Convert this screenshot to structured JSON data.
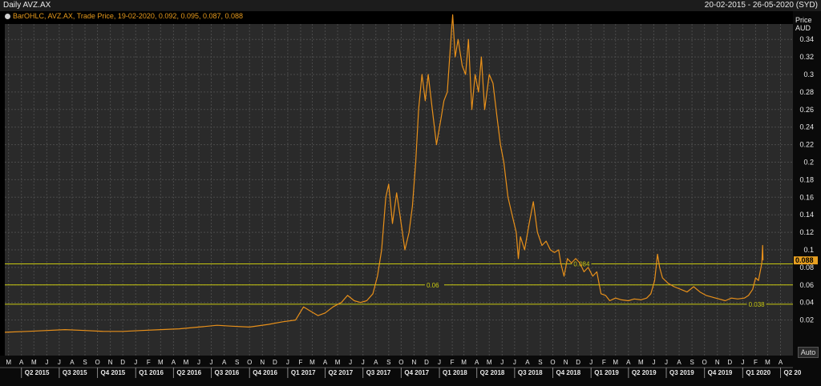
{
  "header": {
    "title": "Daily AVZ.AX",
    "date_range": "20-02-2015 - 26-05-2020 (SYD)"
  },
  "legend": {
    "text": "BarOHLC, AVZ.AX, Trade Price, 19-02-2020, 0.092, 0.095, 0.087, 0.088"
  },
  "price_axis": {
    "title_line1": "Price",
    "title_line2": "AUD",
    "auto_label": "Auto"
  },
  "colors": {
    "background": "#000000",
    "panel": "#1c1c1c",
    "price_line": "#e8901a",
    "support_line": "#c8c810",
    "current_price_badge": "#e8a020",
    "axis_text": "#e8e8e8"
  },
  "chart_data": {
    "type": "line",
    "title": "Daily AVZ.AX",
    "ylabel": "Price AUD",
    "ylim": [
      0,
      0.37
    ],
    "y_ticks": [
      "0.02",
      "0.04",
      "0.06",
      "0.08",
      "0.1",
      "0.12",
      "0.14",
      "0.16",
      "0.18",
      "0.2",
      "0.22",
      "0.24",
      "0.26",
      "0.28",
      "0.3",
      "0.32",
      "0.34"
    ],
    "current_price": "0.088",
    "horizontal_lines": [
      {
        "value": 0.084,
        "label": "0.084",
        "label_at": "2018-11-20"
      },
      {
        "value": 0.06,
        "label": "0.06",
        "label_at": "2017-12-01"
      },
      {
        "value": 0.038,
        "label": "0.038",
        "label_at": "2020-01-15"
      }
    ],
    "month_labels": [
      {
        "label": "M",
        "date": "2015-03-01"
      },
      {
        "label": "A",
        "date": "2015-04-01"
      },
      {
        "label": "M",
        "date": "2015-05-01"
      },
      {
        "label": "J",
        "date": "2015-06-01"
      },
      {
        "label": "J",
        "date": "2015-07-01"
      },
      {
        "label": "A",
        "date": "2015-08-01"
      },
      {
        "label": "S",
        "date": "2015-09-01"
      },
      {
        "label": "O",
        "date": "2015-10-01"
      },
      {
        "label": "N",
        "date": "2015-11-01"
      },
      {
        "label": "D",
        "date": "2015-12-01"
      },
      {
        "label": "J",
        "date": "2016-01-01"
      },
      {
        "label": "F",
        "date": "2016-02-01"
      },
      {
        "label": "M",
        "date": "2016-03-01"
      },
      {
        "label": "A",
        "date": "2016-04-01"
      },
      {
        "label": "M",
        "date": "2016-05-01"
      },
      {
        "label": "J",
        "date": "2016-06-01"
      },
      {
        "label": "J",
        "date": "2016-07-01"
      },
      {
        "label": "A",
        "date": "2016-08-01"
      },
      {
        "label": "S",
        "date": "2016-09-01"
      },
      {
        "label": "O",
        "date": "2016-10-01"
      },
      {
        "label": "N",
        "date": "2016-11-01"
      },
      {
        "label": "D",
        "date": "2016-12-01"
      },
      {
        "label": "J",
        "date": "2017-01-01"
      },
      {
        "label": "F",
        "date": "2017-02-01"
      },
      {
        "label": "M",
        "date": "2017-03-01"
      },
      {
        "label": "A",
        "date": "2017-04-01"
      },
      {
        "label": "M",
        "date": "2017-05-01"
      },
      {
        "label": "J",
        "date": "2017-06-01"
      },
      {
        "label": "J",
        "date": "2017-07-01"
      },
      {
        "label": "A",
        "date": "2017-08-01"
      },
      {
        "label": "S",
        "date": "2017-09-01"
      },
      {
        "label": "O",
        "date": "2017-10-01"
      },
      {
        "label": "N",
        "date": "2017-11-01"
      },
      {
        "label": "D",
        "date": "2017-12-01"
      },
      {
        "label": "J",
        "date": "2018-01-01"
      },
      {
        "label": "F",
        "date": "2018-02-01"
      },
      {
        "label": "M",
        "date": "2018-03-01"
      },
      {
        "label": "A",
        "date": "2018-04-01"
      },
      {
        "label": "M",
        "date": "2018-05-01"
      },
      {
        "label": "J",
        "date": "2018-06-01"
      },
      {
        "label": "J",
        "date": "2018-07-01"
      },
      {
        "label": "A",
        "date": "2018-08-01"
      },
      {
        "label": "S",
        "date": "2018-09-01"
      },
      {
        "label": "O",
        "date": "2018-10-01"
      },
      {
        "label": "N",
        "date": "2018-11-01"
      },
      {
        "label": "D",
        "date": "2018-12-01"
      },
      {
        "label": "J",
        "date": "2019-01-01"
      },
      {
        "label": "F",
        "date": "2019-02-01"
      },
      {
        "label": "M",
        "date": "2019-03-01"
      },
      {
        "label": "A",
        "date": "2019-04-01"
      },
      {
        "label": "M",
        "date": "2019-05-01"
      },
      {
        "label": "J",
        "date": "2019-06-01"
      },
      {
        "label": "J",
        "date": "2019-07-01"
      },
      {
        "label": "A",
        "date": "2019-08-01"
      },
      {
        "label": "S",
        "date": "2019-09-01"
      },
      {
        "label": "O",
        "date": "2019-10-01"
      },
      {
        "label": "N",
        "date": "2019-11-01"
      },
      {
        "label": "D",
        "date": "2019-12-01"
      },
      {
        "label": "J",
        "date": "2020-01-01"
      },
      {
        "label": "F",
        "date": "2020-02-01"
      },
      {
        "label": "M",
        "date": "2020-03-01"
      },
      {
        "label": "A",
        "date": "2020-04-01"
      },
      {
        "label": "M",
        "date": "2020-05-01"
      }
    ],
    "quarter_labels": [
      {
        "label": "Q2 2015",
        "date": "2015-04-01"
      },
      {
        "label": "Q3 2015",
        "date": "2015-07-01"
      },
      {
        "label": "Q4 2015",
        "date": "2015-10-01"
      },
      {
        "label": "Q1 2016",
        "date": "2016-01-01"
      },
      {
        "label": "Q2 2016",
        "date": "2016-04-01"
      },
      {
        "label": "Q3 2016",
        "date": "2016-07-01"
      },
      {
        "label": "Q4 2016",
        "date": "2016-10-01"
      },
      {
        "label": "Q1 2017",
        "date": "2017-01-01"
      },
      {
        "label": "Q2 2017",
        "date": "2017-04-01"
      },
      {
        "label": "Q3 2017",
        "date": "2017-07-01"
      },
      {
        "label": "Q4 2017",
        "date": "2017-10-01"
      },
      {
        "label": "Q1 2018",
        "date": "2018-01-01"
      },
      {
        "label": "Q2 2018",
        "date": "2018-04-01"
      },
      {
        "label": "Q3 2018",
        "date": "2018-07-01"
      },
      {
        "label": "Q4 2018",
        "date": "2018-10-01"
      },
      {
        "label": "Q1 2019",
        "date": "2019-01-01"
      },
      {
        "label": "Q2 2019",
        "date": "2019-04-01"
      },
      {
        "label": "Q3 2019",
        "date": "2019-07-01"
      },
      {
        "label": "Q4 2019",
        "date": "2019-10-01"
      },
      {
        "label": "Q1 2020",
        "date": "2020-01-01"
      },
      {
        "label": "Q2 20",
        "date": "2020-04-01"
      }
    ],
    "x_range": [
      "2015-02-20",
      "2020-05-26"
    ],
    "series": [
      {
        "points": [
          [
            "2015-02-20",
            0.006
          ],
          [
            "2015-04-15",
            0.007
          ],
          [
            "2015-06-01",
            0.008
          ],
          [
            "2015-07-15",
            0.009
          ],
          [
            "2015-09-01",
            0.008
          ],
          [
            "2015-10-15",
            0.007
          ],
          [
            "2015-12-01",
            0.007
          ],
          [
            "2016-01-15",
            0.008
          ],
          [
            "2016-03-01",
            0.009
          ],
          [
            "2016-04-15",
            0.01
          ],
          [
            "2016-06-01",
            0.012
          ],
          [
            "2016-07-15",
            0.014
          ],
          [
            "2016-08-20",
            0.013
          ],
          [
            "2016-10-01",
            0.012
          ],
          [
            "2016-11-15",
            0.015
          ],
          [
            "2016-12-20",
            0.018
          ],
          [
            "2017-01-20",
            0.02
          ],
          [
            "2017-02-08",
            0.035
          ],
          [
            "2017-02-25",
            0.03
          ],
          [
            "2017-03-15",
            0.025
          ],
          [
            "2017-04-01",
            0.028
          ],
          [
            "2017-04-20",
            0.035
          ],
          [
            "2017-05-10",
            0.04
          ],
          [
            "2017-05-25",
            0.048
          ],
          [
            "2017-06-10",
            0.042
          ],
          [
            "2017-06-25",
            0.04
          ],
          [
            "2017-07-10",
            0.042
          ],
          [
            "2017-07-25",
            0.05
          ],
          [
            "2017-08-05",
            0.07
          ],
          [
            "2017-08-15",
            0.1
          ],
          [
            "2017-08-25",
            0.16
          ],
          [
            "2017-09-01",
            0.175
          ],
          [
            "2017-09-10",
            0.13
          ],
          [
            "2017-09-20",
            0.165
          ],
          [
            "2017-09-28",
            0.14
          ],
          [
            "2017-10-10",
            0.1
          ],
          [
            "2017-10-20",
            0.12
          ],
          [
            "2017-10-28",
            0.15
          ],
          [
            "2017-11-05",
            0.2
          ],
          [
            "2017-11-12",
            0.26
          ],
          [
            "2017-11-20",
            0.3
          ],
          [
            "2017-11-28",
            0.27
          ],
          [
            "2017-12-05",
            0.3
          ],
          [
            "2017-12-15",
            0.26
          ],
          [
            "2017-12-25",
            0.22
          ],
          [
            "2018-01-05",
            0.25
          ],
          [
            "2018-01-12",
            0.27
          ],
          [
            "2018-01-20",
            0.28
          ],
          [
            "2018-01-28",
            0.335
          ],
          [
            "2018-02-02",
            0.368
          ],
          [
            "2018-02-08",
            0.32
          ],
          [
            "2018-02-15",
            0.34
          ],
          [
            "2018-02-25",
            0.31
          ],
          [
            "2018-03-05",
            0.3
          ],
          [
            "2018-03-12",
            0.34
          ],
          [
            "2018-03-20",
            0.26
          ],
          [
            "2018-03-28",
            0.3
          ],
          [
            "2018-04-05",
            0.28
          ],
          [
            "2018-04-12",
            0.32
          ],
          [
            "2018-04-20",
            0.26
          ],
          [
            "2018-05-01",
            0.3
          ],
          [
            "2018-05-10",
            0.29
          ],
          [
            "2018-05-20",
            0.25
          ],
          [
            "2018-05-28",
            0.22
          ],
          [
            "2018-06-05",
            0.2
          ],
          [
            "2018-06-15",
            0.16
          ],
          [
            "2018-06-25",
            0.14
          ],
          [
            "2018-07-05",
            0.12
          ],
          [
            "2018-07-10",
            0.09
          ],
          [
            "2018-07-15",
            0.115
          ],
          [
            "2018-07-25",
            0.1
          ],
          [
            "2018-08-05",
            0.13
          ],
          [
            "2018-08-15",
            0.155
          ],
          [
            "2018-08-25",
            0.12
          ],
          [
            "2018-09-05",
            0.105
          ],
          [
            "2018-09-15",
            0.11
          ],
          [
            "2018-09-25",
            0.1
          ],
          [
            "2018-10-05",
            0.097
          ],
          [
            "2018-10-15",
            0.1
          ],
          [
            "2018-10-20",
            0.085
          ],
          [
            "2018-10-28",
            0.07
          ],
          [
            "2018-11-05",
            0.09
          ],
          [
            "2018-11-15",
            0.085
          ],
          [
            "2018-11-25",
            0.09
          ],
          [
            "2018-12-05",
            0.085
          ],
          [
            "2018-12-15",
            0.075
          ],
          [
            "2018-12-25",
            0.08
          ],
          [
            "2019-01-05",
            0.07
          ],
          [
            "2019-01-15",
            0.075
          ],
          [
            "2019-01-25",
            0.05
          ],
          [
            "2019-02-05",
            0.048
          ],
          [
            "2019-02-15",
            0.042
          ],
          [
            "2019-03-01",
            0.045
          ],
          [
            "2019-03-15",
            0.043
          ],
          [
            "2019-04-01",
            0.042
          ],
          [
            "2019-04-15",
            0.044
          ],
          [
            "2019-05-01",
            0.043
          ],
          [
            "2019-05-15",
            0.045
          ],
          [
            "2019-05-25",
            0.05
          ],
          [
            "2019-06-03",
            0.065
          ],
          [
            "2019-06-10",
            0.095
          ],
          [
            "2019-06-15",
            0.08
          ],
          [
            "2019-06-22",
            0.068
          ],
          [
            "2019-07-05",
            0.062
          ],
          [
            "2019-07-20",
            0.058
          ],
          [
            "2019-08-05",
            0.055
          ],
          [
            "2019-08-20",
            0.052
          ],
          [
            "2019-09-05",
            0.058
          ],
          [
            "2019-09-20",
            0.052
          ],
          [
            "2019-10-05",
            0.048
          ],
          [
            "2019-10-20",
            0.046
          ],
          [
            "2019-11-05",
            0.044
          ],
          [
            "2019-11-20",
            0.042
          ],
          [
            "2019-12-05",
            0.045
          ],
          [
            "2019-12-20",
            0.044
          ],
          [
            "2020-01-05",
            0.045
          ],
          [
            "2020-01-15",
            0.048
          ],
          [
            "2020-01-25",
            0.055
          ],
          [
            "2020-02-01",
            0.068
          ],
          [
            "2020-02-08",
            0.065
          ],
          [
            "2020-02-12",
            0.075
          ],
          [
            "2020-02-16",
            0.085
          ],
          [
            "2020-02-18",
            0.105
          ],
          [
            "2020-02-19",
            0.088
          ]
        ]
      }
    ]
  }
}
